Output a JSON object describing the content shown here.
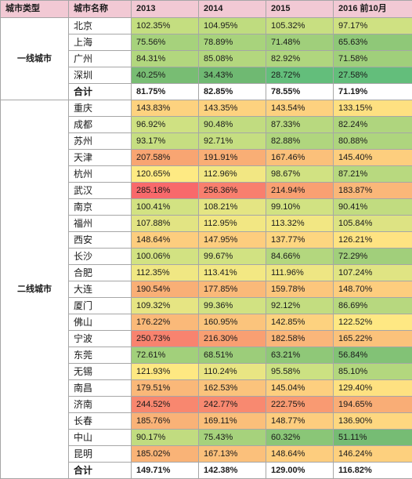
{
  "header": [
    "城市类型",
    "城市名称",
    "2013",
    "2014",
    "2015",
    "2016 前10月"
  ],
  "groups": [
    {
      "name": "一线城市",
      "rows": [
        {
          "city": "北京",
          "values": [
            "102.35%",
            "104.95%",
            "105.32%",
            "97.17%"
          ],
          "colors": [
            "#c4de80",
            "#bfdc7f",
            "#c8df81",
            "#cfe182"
          ]
        },
        {
          "city": "上海",
          "values": [
            "75.56%",
            "78.89%",
            "71.48%",
            "65.63%"
          ],
          "colors": [
            "#a6d27c",
            "#a8d37c",
            "#a0cf7b",
            "#8fc878"
          ]
        },
        {
          "city": "广州",
          "values": [
            "84.31%",
            "85.08%",
            "82.92%",
            "71.58%"
          ],
          "colors": [
            "#b2d77e",
            "#b3d77e",
            "#b0d67e",
            "#a0cf7b"
          ]
        },
        {
          "city": "深圳",
          "values": [
            "40.25%",
            "34.43%",
            "28.72%",
            "27.58%"
          ],
          "colors": [
            "#78bd73",
            "#6fb972",
            "#63be7b",
            "#63be7b"
          ]
        }
      ],
      "total": {
        "label": "合计",
        "values": [
          "81.75%",
          "82.85%",
          "78.55%",
          "71.19%"
        ]
      }
    },
    {
      "name": "二线城市",
      "rows": [
        {
          "city": "重庆",
          "values": [
            "143.83%",
            "143.35%",
            "143.54%",
            "133.15%"
          ],
          "colors": [
            "#fdd27f",
            "#fdd27f",
            "#fdd17f",
            "#fee081"
          ]
        },
        {
          "city": "成都",
          "values": [
            "96.92%",
            "90.48%",
            "87.33%",
            "82.24%"
          ],
          "colors": [
            "#cfe182",
            "#c1dc80",
            "#b8d97f",
            "#afd57e"
          ]
        },
        {
          "city": "苏州",
          "values": [
            "93.17%",
            "92.71%",
            "82.88%",
            "80.88%"
          ],
          "colors": [
            "#c6de81",
            "#c5de81",
            "#b0d67e",
            "#aed57e"
          ]
        },
        {
          "city": "天津",
          "values": [
            "207.58%",
            "191.91%",
            "167.46%",
            "145.40%"
          ],
          "colors": [
            "#f8a572",
            "#f9ae75",
            "#fbc07a",
            "#fdce7e"
          ]
        },
        {
          "city": "杭州",
          "values": [
            "120.65%",
            "112.96%",
            "98.67%",
            "87.21%"
          ],
          "colors": [
            "#feea83",
            "#f2e783",
            "#d1e282",
            "#b8d97f"
          ]
        },
        {
          "city": "武汉",
          "values": [
            "285.18%",
            "256.36%",
            "214.94%",
            "183.87%"
          ],
          "colors": [
            "#f8696b",
            "#f87f6e",
            "#f9a072",
            "#fab779"
          ]
        },
        {
          "city": "南京",
          "values": [
            "100.41%",
            "108.21%",
            "99.10%",
            "90.41%"
          ],
          "colors": [
            "#d2e282",
            "#e4e583",
            "#d1e282",
            "#c1dc80"
          ]
        },
        {
          "city": "福州",
          "values": [
            "107.88%",
            "112.95%",
            "113.32%",
            "105.84%"
          ],
          "colors": [
            "#e2e483",
            "#f2e783",
            "#f2e783",
            "#ddE383"
          ]
        },
        {
          "city": "西安",
          "values": [
            "148.64%",
            "147.95%",
            "137.77%",
            "126.21%"
          ],
          "colors": [
            "#fdcd7e",
            "#fdcd7e",
            "#fdd680",
            "#fee382"
          ]
        },
        {
          "city": "长沙",
          "values": [
            "100.06%",
            "99.67%",
            "84.66%",
            "72.29%"
          ],
          "colors": [
            "#d2e282",
            "#d1e282",
            "#b3d77e",
            "#a1cf7b"
          ]
        },
        {
          "city": "合肥",
          "values": [
            "112.35%",
            "113.41%",
            "111.96%",
            "107.24%"
          ],
          "colors": [
            "#f0e783",
            "#f3e883",
            "#eee683",
            "#e0e483"
          ]
        },
        {
          "city": "大连",
          "values": [
            "190.54%",
            "177.85%",
            "159.78%",
            "148.70%"
          ],
          "colors": [
            "#f9af76",
            "#fab979",
            "#fcc67c",
            "#fdcd7e"
          ]
        },
        {
          "city": "厦门",
          "values": [
            "109.32%",
            "99.36%",
            "92.12%",
            "86.69%"
          ],
          "colors": [
            "#e6e583",
            "#d1e282",
            "#c3dd80",
            "#b7d87f"
          ]
        },
        {
          "city": "佛山",
          "values": [
            "176.22%",
            "160.95%",
            "142.85%",
            "122.52%"
          ],
          "colors": [
            "#fab979",
            "#fbc47c",
            "#fdd27f",
            "#fee883"
          ]
        },
        {
          "city": "宁波",
          "values": [
            "250.73%",
            "216.30%",
            "182.58%",
            "165.22%"
          ],
          "colors": [
            "#f8836f",
            "#f99f72",
            "#fab67a",
            "#fbc27b"
          ]
        },
        {
          "city": "东莞",
          "values": [
            "72.61%",
            "68.51%",
            "63.21%",
            "56.84%"
          ],
          "colors": [
            "#a2d07b",
            "#9ccd7a",
            "#8fc878",
            "#82c276"
          ]
        },
        {
          "city": "无锡",
          "values": [
            "121.93%",
            "110.24%",
            "95.58%",
            "85.10%"
          ],
          "colors": [
            "#fee882",
            "#e9e583",
            "#ccE182",
            "#b3d77e"
          ]
        },
        {
          "city": "南昌",
          "values": [
            "179.51%",
            "162.53%",
            "145.04%",
            "129.40%"
          ],
          "colors": [
            "#fab879",
            "#fbc37c",
            "#fdcf7f",
            "#fee181"
          ]
        },
        {
          "city": "济南",
          "values": [
            "244.52%",
            "242.77%",
            "222.75%",
            "194.65%"
          ],
          "colors": [
            "#f8876f",
            "#f88970",
            "#f99a72",
            "#f9ad76"
          ]
        },
        {
          "city": "长春",
          "values": [
            "185.76%",
            "169.11%",
            "148.77%",
            "136.90%"
          ],
          "colors": [
            "#f9b277",
            "#fbbf7a",
            "#fdcd7e",
            "#fed780"
          ]
        },
        {
          "city": "中山",
          "values": [
            "90.17%",
            "75.43%",
            "60.32%",
            "51.11%"
          ],
          "colors": [
            "#c1dc80",
            "#a6d27c",
            "#8ac677",
            "#76bc74"
          ]
        },
        {
          "city": "昆明",
          "values": [
            "185.02%",
            "167.13%",
            "148.64%",
            "146.24%"
          ],
          "colors": [
            "#f9b377",
            "#fbc07b",
            "#fdcd7e",
            "#fdd07e"
          ]
        }
      ],
      "total": {
        "label": "合计",
        "values": [
          "149.71%",
          "142.38%",
          "129.00%",
          "116.82%"
        ]
      }
    }
  ]
}
